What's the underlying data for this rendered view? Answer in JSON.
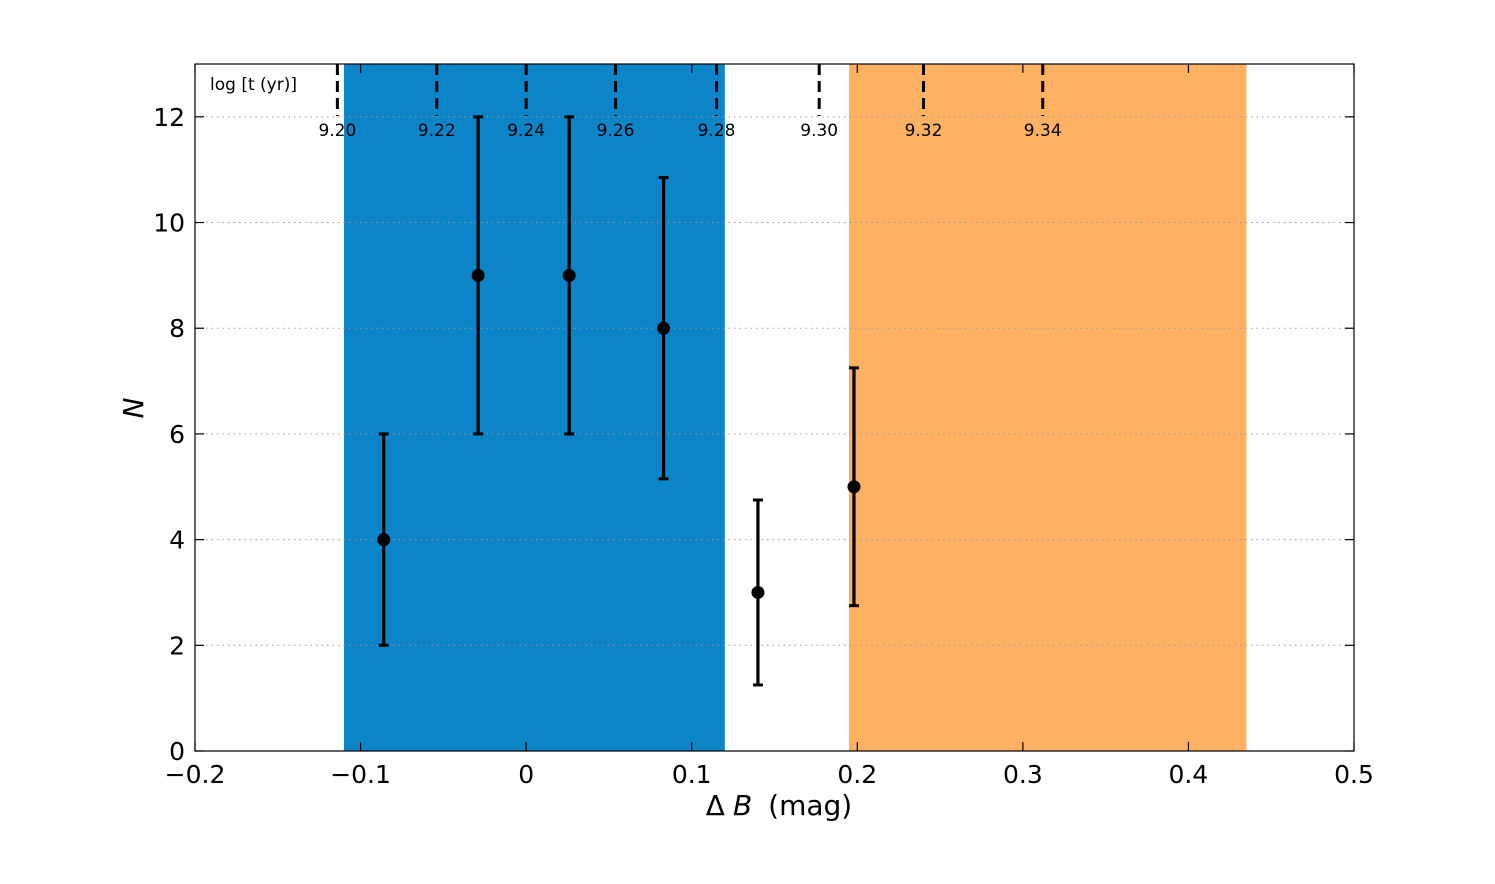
{
  "chart_data": {
    "type": "scatter",
    "xlabel_symbol": "Δ",
    "xlabel_var": "B",
    "xlabel_unit": "(mag)",
    "ylabel": "N",
    "xlim": [
      -0.2,
      0.5
    ],
    "ylim": [
      0,
      13
    ],
    "x_ticks": [
      {
        "value": -0.2,
        "label": "−0.2"
      },
      {
        "value": -0.1,
        "label": "−0.1"
      },
      {
        "value": 0.0,
        "label": "0"
      },
      {
        "value": 0.1,
        "label": "0.1"
      },
      {
        "value": 0.2,
        "label": "0.2"
      },
      {
        "value": 0.3,
        "label": "0.3"
      },
      {
        "value": 0.4,
        "label": "0.4"
      },
      {
        "value": 0.5,
        "label": "0.5"
      }
    ],
    "y_ticks": [
      {
        "value": 0,
        "label": "0"
      },
      {
        "value": 2,
        "label": "2"
      },
      {
        "value": 4,
        "label": "4"
      },
      {
        "value": 6,
        "label": "6"
      },
      {
        "value": 8,
        "label": "8"
      },
      {
        "value": 10,
        "label": "10"
      },
      {
        "value": 12,
        "label": "12"
      }
    ],
    "grid": "dotted horizontal at y ticks",
    "shaded_regions": [
      {
        "x_start": -0.11,
        "x_end": 0.12,
        "color": "#0b84c8"
      },
      {
        "x_start": 0.195,
        "x_end": 0.435,
        "color": "#ffb163"
      }
    ],
    "points": [
      {
        "x": -0.086,
        "y": 4,
        "y_low": 2.0,
        "y_high": 6.0
      },
      {
        "x": -0.029,
        "y": 9,
        "y_low": 6.0,
        "y_high": 12.0
      },
      {
        "x": 0.026,
        "y": 9,
        "y_low": 6.0,
        "y_high": 12.0
      },
      {
        "x": 0.083,
        "y": 8,
        "y_low": 5.15,
        "y_high": 10.85
      },
      {
        "x": 0.14,
        "y": 3,
        "y_low": 1.25,
        "y_high": 4.75
      },
      {
        "x": 0.198,
        "y": 5,
        "y_low": 2.75,
        "y_high": 7.25
      }
    ],
    "age_axis": {
      "title": "log [t (yr)]",
      "markers": [
        {
          "x": -0.114,
          "label": "9.20"
        },
        {
          "x": -0.054,
          "label": "9.22"
        },
        {
          "x": 0.0,
          "label": "9.24"
        },
        {
          "x": 0.054,
          "label": "9.26"
        },
        {
          "x": 0.115,
          "label": "9.28"
        },
        {
          "x": 0.177,
          "label": "9.30"
        },
        {
          "x": 0.24,
          "label": "9.32"
        },
        {
          "x": 0.312,
          "label": "9.34"
        }
      ]
    }
  }
}
